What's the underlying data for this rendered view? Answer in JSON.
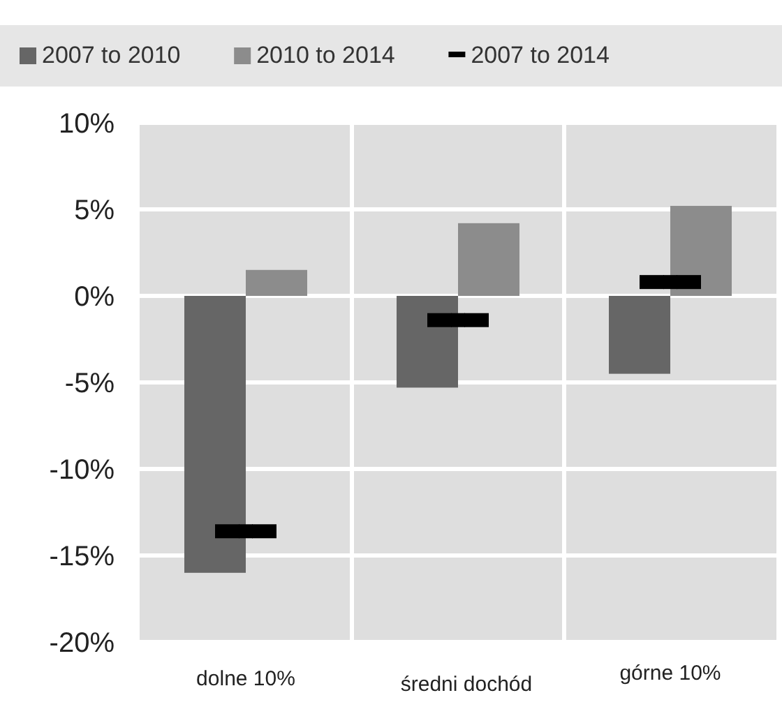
{
  "chart_data": {
    "type": "bar",
    "categories": [
      "dolne 10%",
      "średni dochód",
      "górne 10%"
    ],
    "series": [
      {
        "name": "2007 to 2010",
        "color": "#666666",
        "values": [
          -16.0,
          -5.3,
          -4.5
        ]
      },
      {
        "name": "2010 to 2014",
        "color": "#8c8c8c",
        "values": [
          1.5,
          4.2,
          5.2
        ]
      },
      {
        "name": "2007 to 2014",
        "type": "scatter",
        "color": "#000000",
        "values": [
          -13.6,
          -1.4,
          0.8
        ]
      }
    ],
    "ylim": [
      -20,
      10
    ],
    "yticks": [
      {
        "value": -20,
        "label": "-20%"
      },
      {
        "value": -15,
        "label": "-15%"
      },
      {
        "value": -10,
        "label": "-10%"
      },
      {
        "value": -5,
        "label": "-5%"
      },
      {
        "value": 0,
        "label": "0%"
      },
      {
        "value": 5,
        "label": "5%"
      },
      {
        "value": 10,
        "label": "10%"
      }
    ],
    "grid": true,
    "legend": "top"
  }
}
